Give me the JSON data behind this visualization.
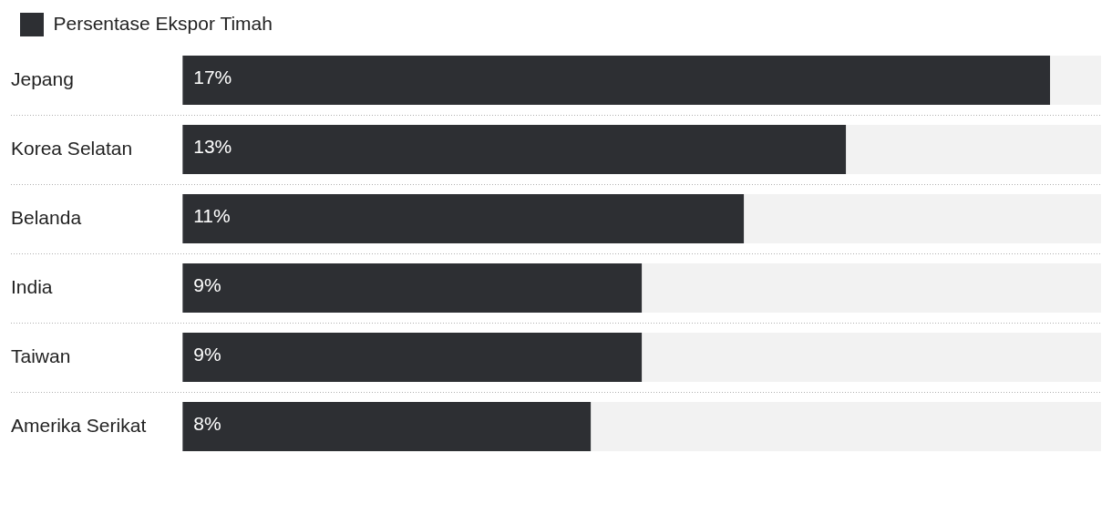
{
  "chart_data": {
    "type": "bar",
    "orientation": "horizontal",
    "categories": [
      "Jepang",
      "Korea Selatan",
      "Belanda",
      "India",
      "Taiwan",
      "Amerika Serikat"
    ],
    "series": [
      {
        "name": "Persentase Ekspor Timah",
        "color": "#2d2f33",
        "values": [
          17,
          13,
          11,
          9,
          9,
          8
        ],
        "value_labels": [
          "17%",
          "13%",
          "11%",
          "9%",
          "9%",
          "8%"
        ]
      }
    ],
    "legend": "top left",
    "grid": "y"
  }
}
